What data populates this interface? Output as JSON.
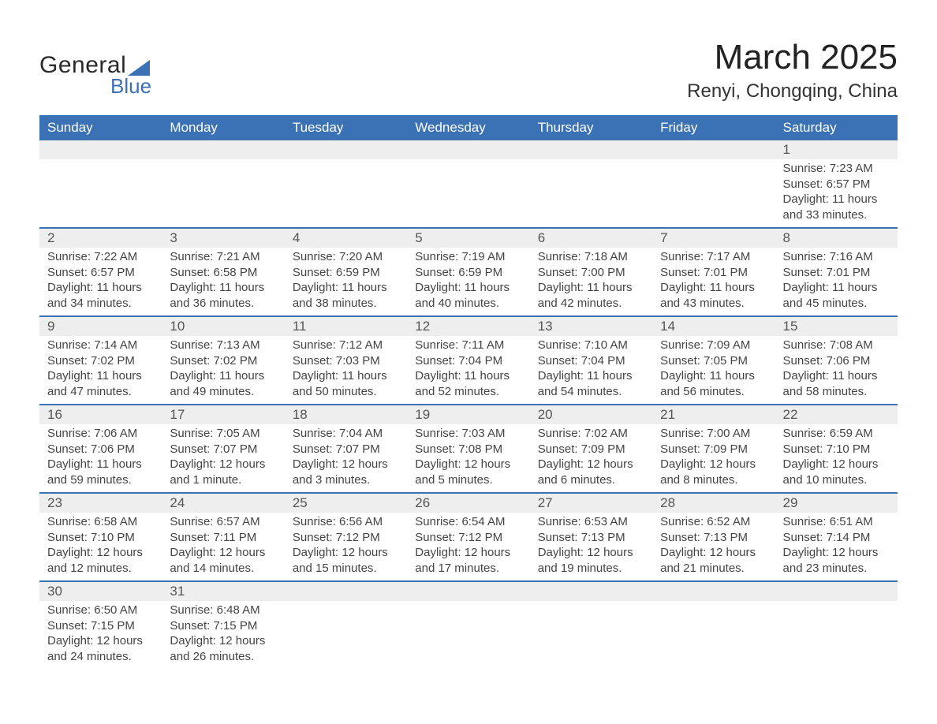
{
  "logo": {
    "word1": "General",
    "word2": "Blue"
  },
  "header": {
    "month_title": "March 2025",
    "location": "Renyi, Chongqing, China"
  },
  "calendar": {
    "day_headers": [
      "Sunday",
      "Monday",
      "Tuesday",
      "Wednesday",
      "Thursday",
      "Friday",
      "Saturday"
    ],
    "header_bg": "#3b72b6",
    "header_fg": "#ffffff",
    "row_divider_color": "#3b72b6",
    "daynum_bg": "#eeeeee",
    "text_color": "#444444",
    "weeks": [
      [
        null,
        null,
        null,
        null,
        null,
        null,
        {
          "n": "1",
          "sr": "Sunrise: 7:23 AM",
          "ss": "Sunset: 6:57 PM",
          "d1": "Daylight: 11 hours",
          "d2": "and 33 minutes."
        }
      ],
      [
        {
          "n": "2",
          "sr": "Sunrise: 7:22 AM",
          "ss": "Sunset: 6:57 PM",
          "d1": "Daylight: 11 hours",
          "d2": "and 34 minutes."
        },
        {
          "n": "3",
          "sr": "Sunrise: 7:21 AM",
          "ss": "Sunset: 6:58 PM",
          "d1": "Daylight: 11 hours",
          "d2": "and 36 minutes."
        },
        {
          "n": "4",
          "sr": "Sunrise: 7:20 AM",
          "ss": "Sunset: 6:59 PM",
          "d1": "Daylight: 11 hours",
          "d2": "and 38 minutes."
        },
        {
          "n": "5",
          "sr": "Sunrise: 7:19 AM",
          "ss": "Sunset: 6:59 PM",
          "d1": "Daylight: 11 hours",
          "d2": "and 40 minutes."
        },
        {
          "n": "6",
          "sr": "Sunrise: 7:18 AM",
          "ss": "Sunset: 7:00 PM",
          "d1": "Daylight: 11 hours",
          "d2": "and 42 minutes."
        },
        {
          "n": "7",
          "sr": "Sunrise: 7:17 AM",
          "ss": "Sunset: 7:01 PM",
          "d1": "Daylight: 11 hours",
          "d2": "and 43 minutes."
        },
        {
          "n": "8",
          "sr": "Sunrise: 7:16 AM",
          "ss": "Sunset: 7:01 PM",
          "d1": "Daylight: 11 hours",
          "d2": "and 45 minutes."
        }
      ],
      [
        {
          "n": "9",
          "sr": "Sunrise: 7:14 AM",
          "ss": "Sunset: 7:02 PM",
          "d1": "Daylight: 11 hours",
          "d2": "and 47 minutes."
        },
        {
          "n": "10",
          "sr": "Sunrise: 7:13 AM",
          "ss": "Sunset: 7:02 PM",
          "d1": "Daylight: 11 hours",
          "d2": "and 49 minutes."
        },
        {
          "n": "11",
          "sr": "Sunrise: 7:12 AM",
          "ss": "Sunset: 7:03 PM",
          "d1": "Daylight: 11 hours",
          "d2": "and 50 minutes."
        },
        {
          "n": "12",
          "sr": "Sunrise: 7:11 AM",
          "ss": "Sunset: 7:04 PM",
          "d1": "Daylight: 11 hours",
          "d2": "and 52 minutes."
        },
        {
          "n": "13",
          "sr": "Sunrise: 7:10 AM",
          "ss": "Sunset: 7:04 PM",
          "d1": "Daylight: 11 hours",
          "d2": "and 54 minutes."
        },
        {
          "n": "14",
          "sr": "Sunrise: 7:09 AM",
          "ss": "Sunset: 7:05 PM",
          "d1": "Daylight: 11 hours",
          "d2": "and 56 minutes."
        },
        {
          "n": "15",
          "sr": "Sunrise: 7:08 AM",
          "ss": "Sunset: 7:06 PM",
          "d1": "Daylight: 11 hours",
          "d2": "and 58 minutes."
        }
      ],
      [
        {
          "n": "16",
          "sr": "Sunrise: 7:06 AM",
          "ss": "Sunset: 7:06 PM",
          "d1": "Daylight: 11 hours",
          "d2": "and 59 minutes."
        },
        {
          "n": "17",
          "sr": "Sunrise: 7:05 AM",
          "ss": "Sunset: 7:07 PM",
          "d1": "Daylight: 12 hours",
          "d2": "and 1 minute."
        },
        {
          "n": "18",
          "sr": "Sunrise: 7:04 AM",
          "ss": "Sunset: 7:07 PM",
          "d1": "Daylight: 12 hours",
          "d2": "and 3 minutes."
        },
        {
          "n": "19",
          "sr": "Sunrise: 7:03 AM",
          "ss": "Sunset: 7:08 PM",
          "d1": "Daylight: 12 hours",
          "d2": "and 5 minutes."
        },
        {
          "n": "20",
          "sr": "Sunrise: 7:02 AM",
          "ss": "Sunset: 7:09 PM",
          "d1": "Daylight: 12 hours",
          "d2": "and 6 minutes."
        },
        {
          "n": "21",
          "sr": "Sunrise: 7:00 AM",
          "ss": "Sunset: 7:09 PM",
          "d1": "Daylight: 12 hours",
          "d2": "and 8 minutes."
        },
        {
          "n": "22",
          "sr": "Sunrise: 6:59 AM",
          "ss": "Sunset: 7:10 PM",
          "d1": "Daylight: 12 hours",
          "d2": "and 10 minutes."
        }
      ],
      [
        {
          "n": "23",
          "sr": "Sunrise: 6:58 AM",
          "ss": "Sunset: 7:10 PM",
          "d1": "Daylight: 12 hours",
          "d2": "and 12 minutes."
        },
        {
          "n": "24",
          "sr": "Sunrise: 6:57 AM",
          "ss": "Sunset: 7:11 PM",
          "d1": "Daylight: 12 hours",
          "d2": "and 14 minutes."
        },
        {
          "n": "25",
          "sr": "Sunrise: 6:56 AM",
          "ss": "Sunset: 7:12 PM",
          "d1": "Daylight: 12 hours",
          "d2": "and 15 minutes."
        },
        {
          "n": "26",
          "sr": "Sunrise: 6:54 AM",
          "ss": "Sunset: 7:12 PM",
          "d1": "Daylight: 12 hours",
          "d2": "and 17 minutes."
        },
        {
          "n": "27",
          "sr": "Sunrise: 6:53 AM",
          "ss": "Sunset: 7:13 PM",
          "d1": "Daylight: 12 hours",
          "d2": "and 19 minutes."
        },
        {
          "n": "28",
          "sr": "Sunrise: 6:52 AM",
          "ss": "Sunset: 7:13 PM",
          "d1": "Daylight: 12 hours",
          "d2": "and 21 minutes."
        },
        {
          "n": "29",
          "sr": "Sunrise: 6:51 AM",
          "ss": "Sunset: 7:14 PM",
          "d1": "Daylight: 12 hours",
          "d2": "and 23 minutes."
        }
      ],
      [
        {
          "n": "30",
          "sr": "Sunrise: 6:50 AM",
          "ss": "Sunset: 7:15 PM",
          "d1": "Daylight: 12 hours",
          "d2": "and 24 minutes."
        },
        {
          "n": "31",
          "sr": "Sunrise: 6:48 AM",
          "ss": "Sunset: 7:15 PM",
          "d1": "Daylight: 12 hours",
          "d2": "and 26 minutes."
        },
        null,
        null,
        null,
        null,
        null
      ]
    ]
  }
}
